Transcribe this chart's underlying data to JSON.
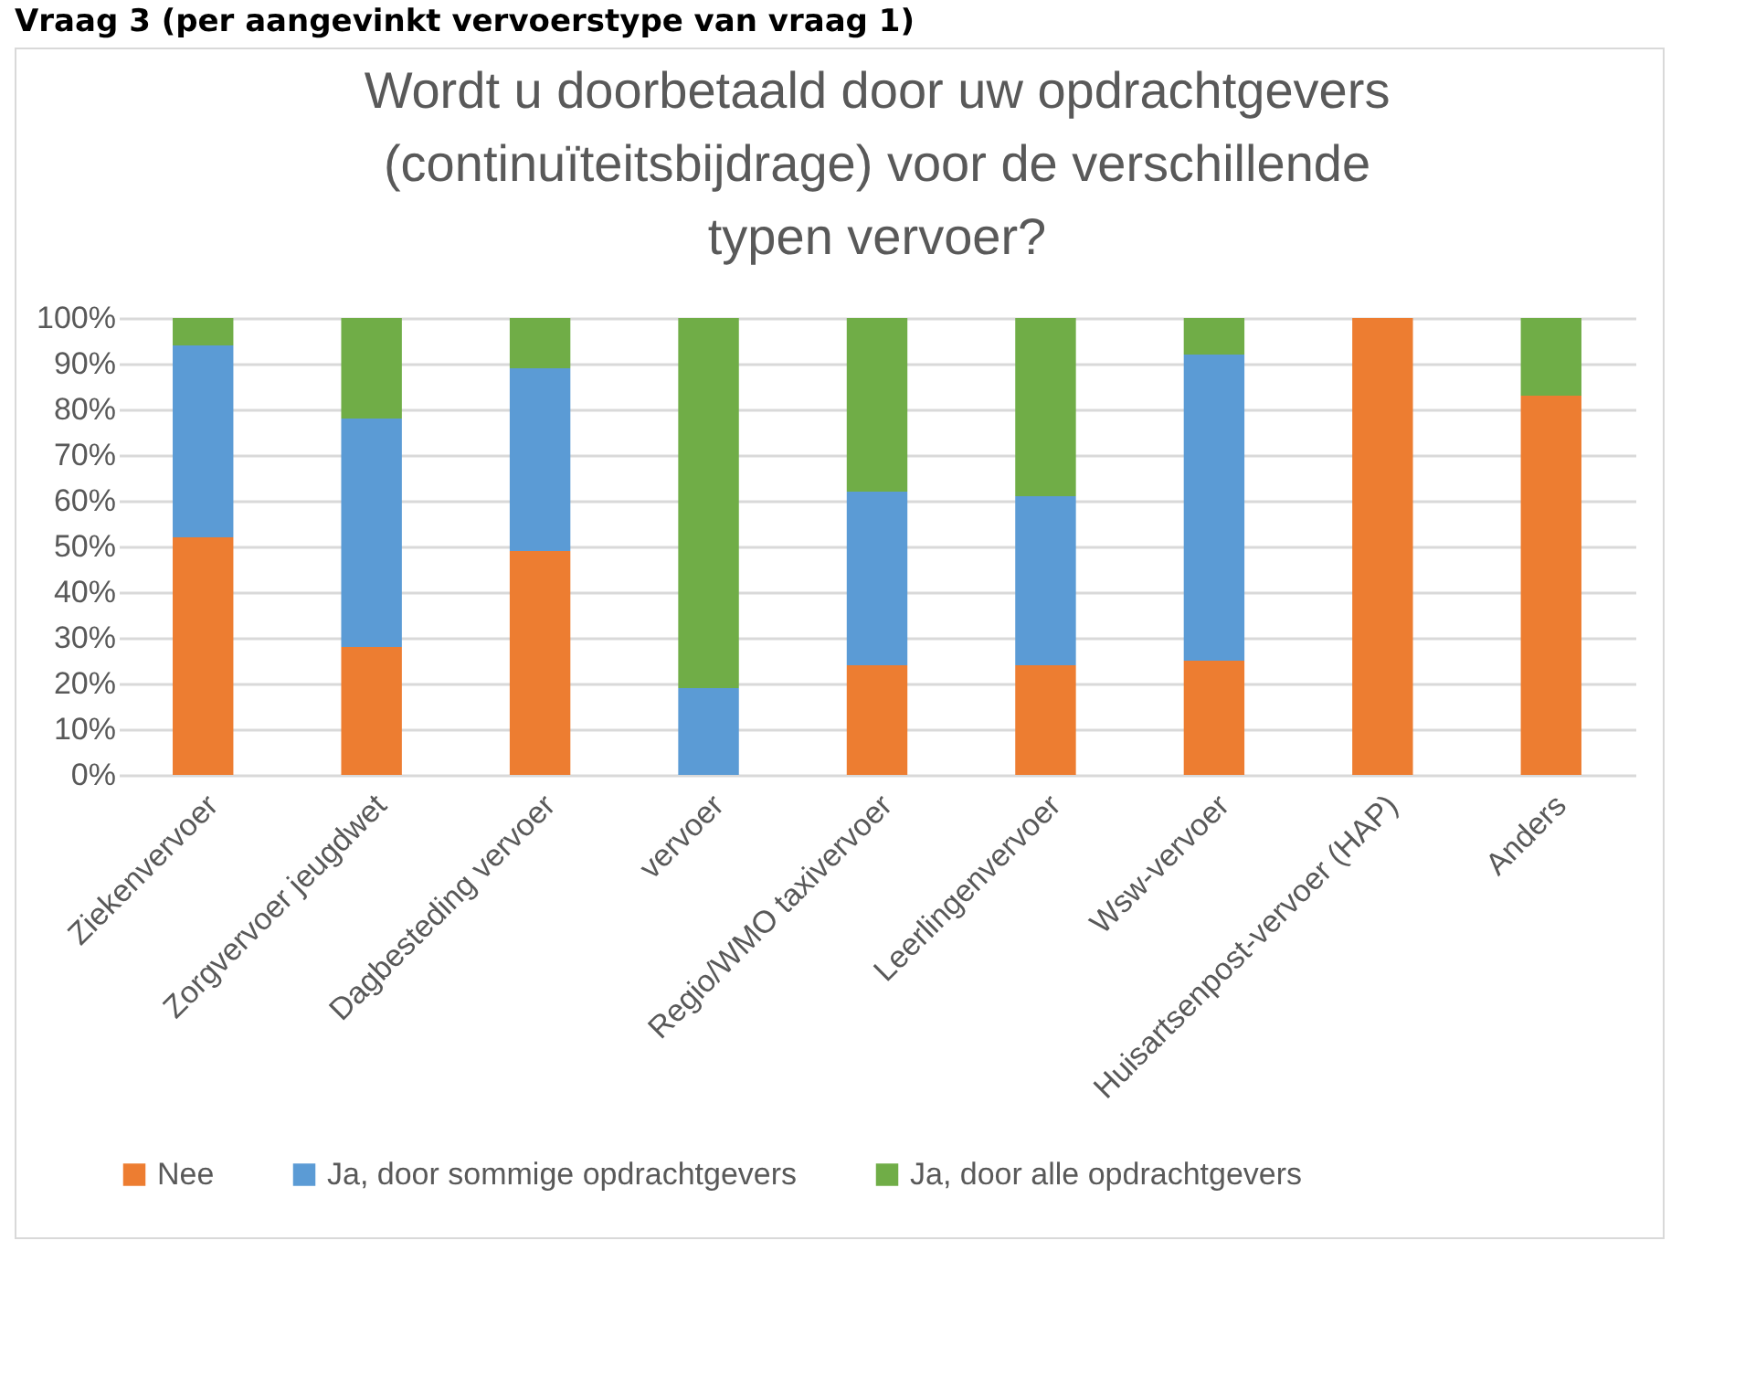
{
  "chart_data": {
    "type": "bar",
    "stacked": true,
    "title": [
      "Wordt u doorbetaald door uw opdrachtgevers",
      "(continuïteitsbijdrage) voor de verschillende",
      "typen vervoer?"
    ],
    "annotations": [
      "Vraag 3 (per aangevinkt vervoerstype van vraag 1)"
    ],
    "categories": [
      "Ziekenvervoer",
      "Zorgvervoer jeugdwet",
      "Dagbesteding vervoer",
      "vervoer",
      "Regio/WMO taxivervoer",
      "Leerlingenvervoer",
      "Wsw-vervoer",
      "Huisartsenpost-vervoer (HAP)",
      "Anders"
    ],
    "series": [
      {
        "name": "Nee",
        "color": "#ed7d31",
        "values": [
          52,
          28,
          49,
          0,
          24,
          24,
          25,
          100,
          83
        ]
      },
      {
        "name": "Ja, door sommige opdrachtgevers",
        "color": "#5b9bd5",
        "values": [
          42,
          50,
          40,
          19,
          38,
          37,
          67,
          0,
          0
        ]
      },
      {
        "name": "Ja, door alle opdrachtgevers",
        "color": "#70ad47",
        "values": [
          6,
          22,
          11,
          81,
          38,
          39,
          8,
          0,
          17
        ]
      }
    ],
    "ylim": [
      0,
      100
    ],
    "yticks": [
      {
        "value": 0,
        "label": "0%"
      },
      {
        "value": 10,
        "label": "10%"
      },
      {
        "value": 20,
        "label": "20%"
      },
      {
        "value": 30,
        "label": "30%"
      },
      {
        "value": 40,
        "label": "40%"
      },
      {
        "value": 50,
        "label": "50%"
      },
      {
        "value": 60,
        "label": "60%"
      },
      {
        "value": 70,
        "label": "70%"
      },
      {
        "value": 80,
        "label": "80%"
      },
      {
        "value": 90,
        "label": "90%"
      },
      {
        "value": 100,
        "label": "100%"
      }
    ],
    "grid": "y",
    "legend": "bottom"
  }
}
